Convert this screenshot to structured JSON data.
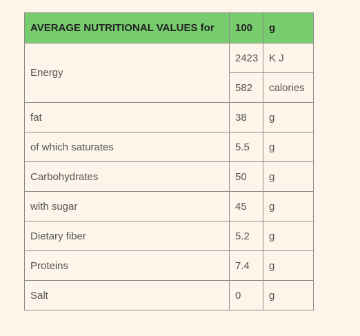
{
  "table": {
    "header": [
      "AVERAGE NUTRITIONAL VALUES for",
      "100",
      "g"
    ],
    "energy": {
      "label": "Energy",
      "rows": [
        [
          "2423",
          "K J"
        ],
        [
          "582",
          "calories"
        ]
      ]
    },
    "rows": [
      [
        "fat",
        "38",
        "g"
      ],
      [
        "of which saturates",
        "5.5",
        "g"
      ],
      [
        "Carbohydrates",
        "50",
        "g"
      ],
      [
        "with sugar",
        "45",
        "g"
      ],
      [
        "Dietary fiber",
        "5.2",
        "g"
      ],
      [
        "Proteins",
        "7.4",
        "g"
      ],
      [
        "Salt",
        "0",
        "g"
      ]
    ]
  }
}
